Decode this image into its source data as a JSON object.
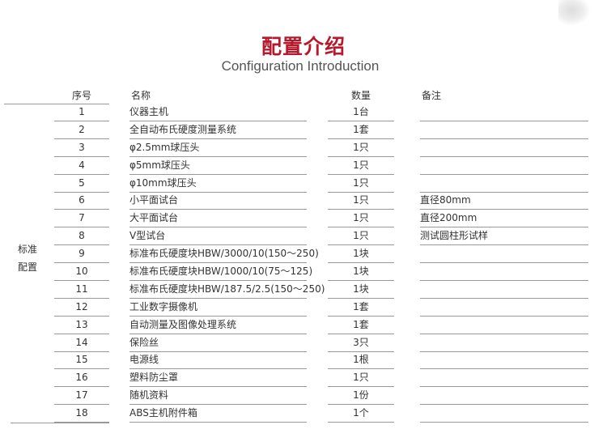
{
  "title": {
    "cn": "配置介绍",
    "en": "Configuration Introduction"
  },
  "headers": {
    "seq": "序号",
    "name": "名称",
    "qty": "数量",
    "remark": "备注"
  },
  "group_label": [
    "标准",
    "配置"
  ],
  "accent_color": "#b5192b",
  "rows": [
    {
      "seq": "1",
      "name": "仪器主机",
      "qty": "1台",
      "remark": ""
    },
    {
      "seq": "2",
      "name": "全自动布氏硬度测量系统",
      "qty": "1套",
      "remark": ""
    },
    {
      "seq": "3",
      "name": "φ2.5mm球压头",
      "qty": "1只",
      "remark": ""
    },
    {
      "seq": "4",
      "name": "φ5mm球压头",
      "qty": "1只",
      "remark": ""
    },
    {
      "seq": "5",
      "name": "φ10mm球压头",
      "qty": "1只",
      "remark": ""
    },
    {
      "seq": "6",
      "name": "小平面试台",
      "qty": "1只",
      "remark": "直径80mm"
    },
    {
      "seq": "7",
      "name": "大平面试台",
      "qty": "1只",
      "remark": "直径200mm"
    },
    {
      "seq": "8",
      "name": "V型试台",
      "qty": "1只",
      "remark": "测试圆柱形试样"
    },
    {
      "seq": "9",
      "name": "标准布氏硬度块HBW/3000/10(150～250)",
      "qty": "1块",
      "remark": ""
    },
    {
      "seq": "10",
      "name": "标准布氏硬度块HBW/1000/10(75～125)",
      "qty": "1块",
      "remark": ""
    },
    {
      "seq": "11",
      "name": "标准布氏硬度块HBW/187.5/2.5(150～250)",
      "qty": "1块",
      "remark": ""
    },
    {
      "seq": "12",
      "name": "工业数字摄像机",
      "qty": "1套",
      "remark": ""
    },
    {
      "seq": "13",
      "name": "自动测量及图像处理系统",
      "qty": "1套",
      "remark": ""
    },
    {
      "seq": "14",
      "name": "保险丝",
      "qty": "3只",
      "remark": ""
    },
    {
      "seq": "15",
      "name": "电源线",
      "qty": "1根",
      "remark": ""
    },
    {
      "seq": "16",
      "name": "塑料防尘罩",
      "qty": "1只",
      "remark": ""
    },
    {
      "seq": "17",
      "name": "随机资料",
      "qty": "1份",
      "remark": ""
    },
    {
      "seq": "18",
      "name": "ABS主机附件箱",
      "qty": "1个",
      "remark": ""
    }
  ]
}
